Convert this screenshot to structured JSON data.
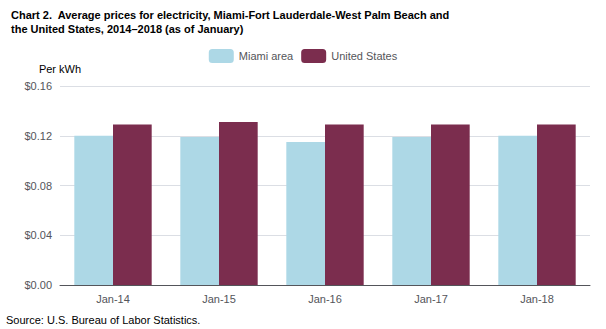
{
  "chart_data": {
    "type": "bar",
    "title": "Chart 2.  Average prices for electricity, Miami-Fort Lauderdale-West Palm Beach and",
    "subtitle": "the United States, 2014–2018 (as of January)",
    "ylabel": "Per kWh",
    "annotations": [
      "Source: U.S. Bureau of Labor Statistics."
    ],
    "categories": [
      "Jan-14",
      "Jan-15",
      "Jan-16",
      "Jan-17",
      "Jan-18"
    ],
    "series": [
      {
        "name": "Miami area",
        "color": "#ADD8E6",
        "values": [
          0.12,
          0.119,
          0.115,
          0.119,
          0.12
        ]
      },
      {
        "name": "United States",
        "color": "#7B2D4E",
        "values": [
          0.129,
          0.131,
          0.129,
          0.129,
          0.129
        ]
      }
    ],
    "ylim": [
      0,
      0.16
    ],
    "yticks": [
      {
        "value": 0.0,
        "label": "$0.00"
      },
      {
        "value": 0.04,
        "label": "$0.04"
      },
      {
        "value": 0.08,
        "label": "$0.08"
      },
      {
        "value": 0.12,
        "label": "$0.12"
      },
      {
        "value": 0.16,
        "label": "$0.16"
      }
    ],
    "grid": true,
    "legend": "top"
  }
}
